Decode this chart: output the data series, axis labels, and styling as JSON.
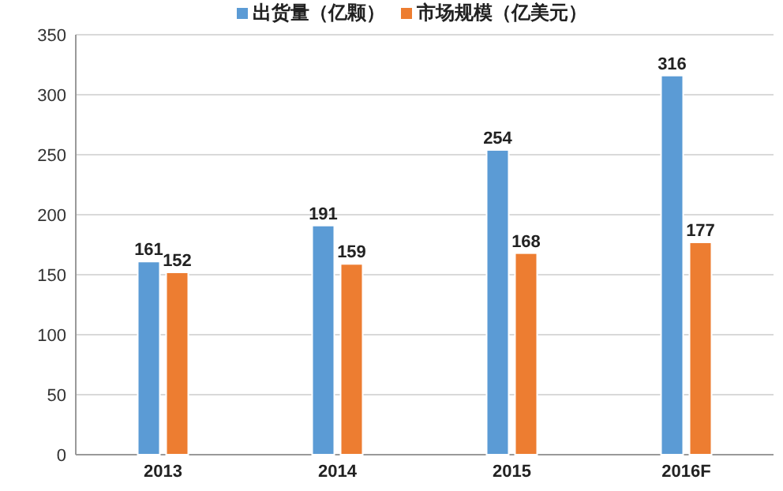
{
  "chart_data": {
    "type": "bar",
    "categories": [
      "2013",
      "2014",
      "2015",
      "2016F"
    ],
    "series": [
      {
        "name": "出货量（亿颗）",
        "color": "#5b9bd5",
        "values": [
          161,
          191,
          254,
          316
        ]
      },
      {
        "name": "市场规模（亿美元）",
        "color": "#ed7d31",
        "values": [
          152,
          159,
          168,
          177
        ]
      }
    ],
    "ylim": [
      0,
      350
    ],
    "yticks": [
      0,
      50,
      100,
      150,
      200,
      250,
      300,
      350
    ],
    "grid": "y",
    "legend": "top",
    "data_labels": true
  }
}
